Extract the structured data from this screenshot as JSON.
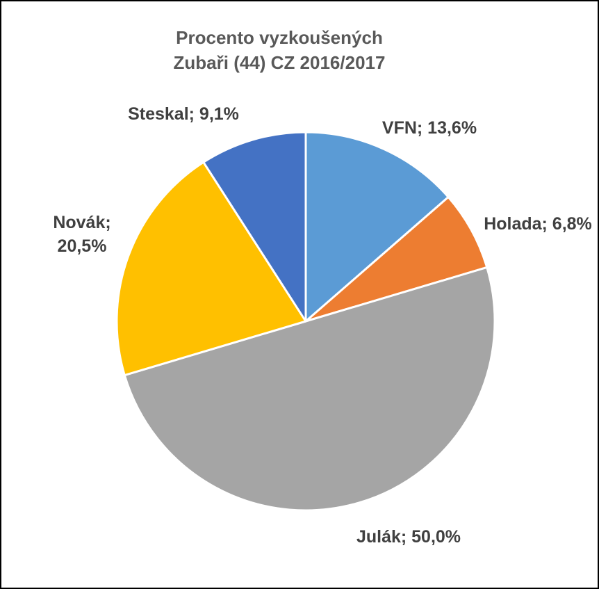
{
  "chart_data": {
    "type": "pie",
    "title": "Procento vyzkoušených",
    "subtitle": "Zubaři (44) CZ 2016/2017",
    "slices": [
      {
        "name": "VFN",
        "value": 13.6,
        "label_lines": [
          "VFN; 13,6%"
        ],
        "color": "#5B9BD5"
      },
      {
        "name": "Holada",
        "value": 6.8,
        "label_lines": [
          "Holada; 6,8%"
        ],
        "color": "#ED7D31"
      },
      {
        "name": "Julák",
        "value": 50.0,
        "label_lines": [
          "Julák; 50,0%"
        ],
        "color": "#A5A5A5"
      },
      {
        "name": "Novák",
        "value": 20.5,
        "label_lines": [
          "Novák;",
          "20,5%"
        ],
        "color": "#FFC000"
      },
      {
        "name": "Steskal",
        "value": 9.1,
        "label_lines": [
          "Steskal; 9,1%"
        ],
        "color": "#4472C4"
      }
    ],
    "legend": "none"
  }
}
